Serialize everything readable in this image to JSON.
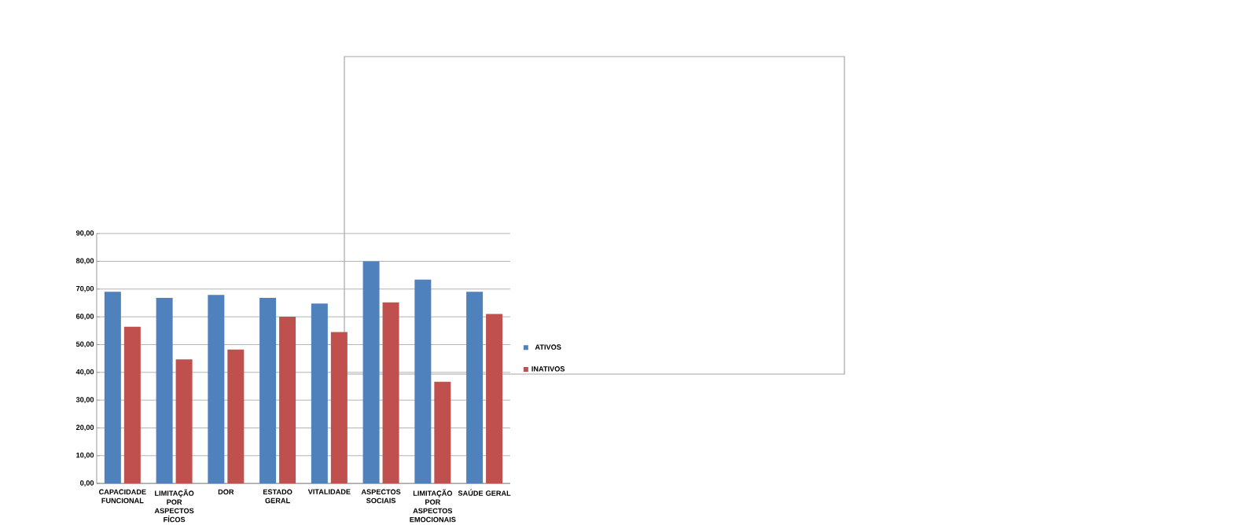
{
  "chart_data": {
    "type": "bar",
    "categories": [
      "CAPACIDADE FUNCIONAL",
      "LIMITAÇÃO POR ASPECTOS FÍCOS",
      "DOR",
      "ESTADO GERAL",
      "VITALIDADE",
      "ASPECTOS SOCIAIS",
      "LIMITAÇÃO POR ASPECTOS EMOCIONAIS",
      "SAÚDE GERAL"
    ],
    "series": [
      {
        "name": "ATIVOS",
        "color": "#4f81bd",
        "values": [
          69,
          66.8,
          67.9,
          66.8,
          64.8,
          80,
          73.4,
          69
        ]
      },
      {
        "name": "INATIVOS",
        "color": "#c0504d",
        "values": [
          56.4,
          44.7,
          48.2,
          60,
          54.5,
          65.2,
          36.6,
          61
        ]
      }
    ],
    "ylim": [
      0,
      90
    ],
    "yticks": [
      {
        "value": 0,
        "label": "0,00"
      },
      {
        "value": 10,
        "label": "10,00"
      },
      {
        "value": 20,
        "label": "20,00"
      },
      {
        "value": 30,
        "label": "30,00"
      },
      {
        "value": 40,
        "label": "40,00"
      },
      {
        "value": 50,
        "label": "50,00"
      },
      {
        "value": 60,
        "label": "60,00"
      },
      {
        "value": 70,
        "label": "70,00"
      },
      {
        "value": 80,
        "label": "80,00"
      },
      {
        "value": 90,
        "label": "90,00"
      }
    ],
    "grid": "y",
    "legend": "right"
  }
}
